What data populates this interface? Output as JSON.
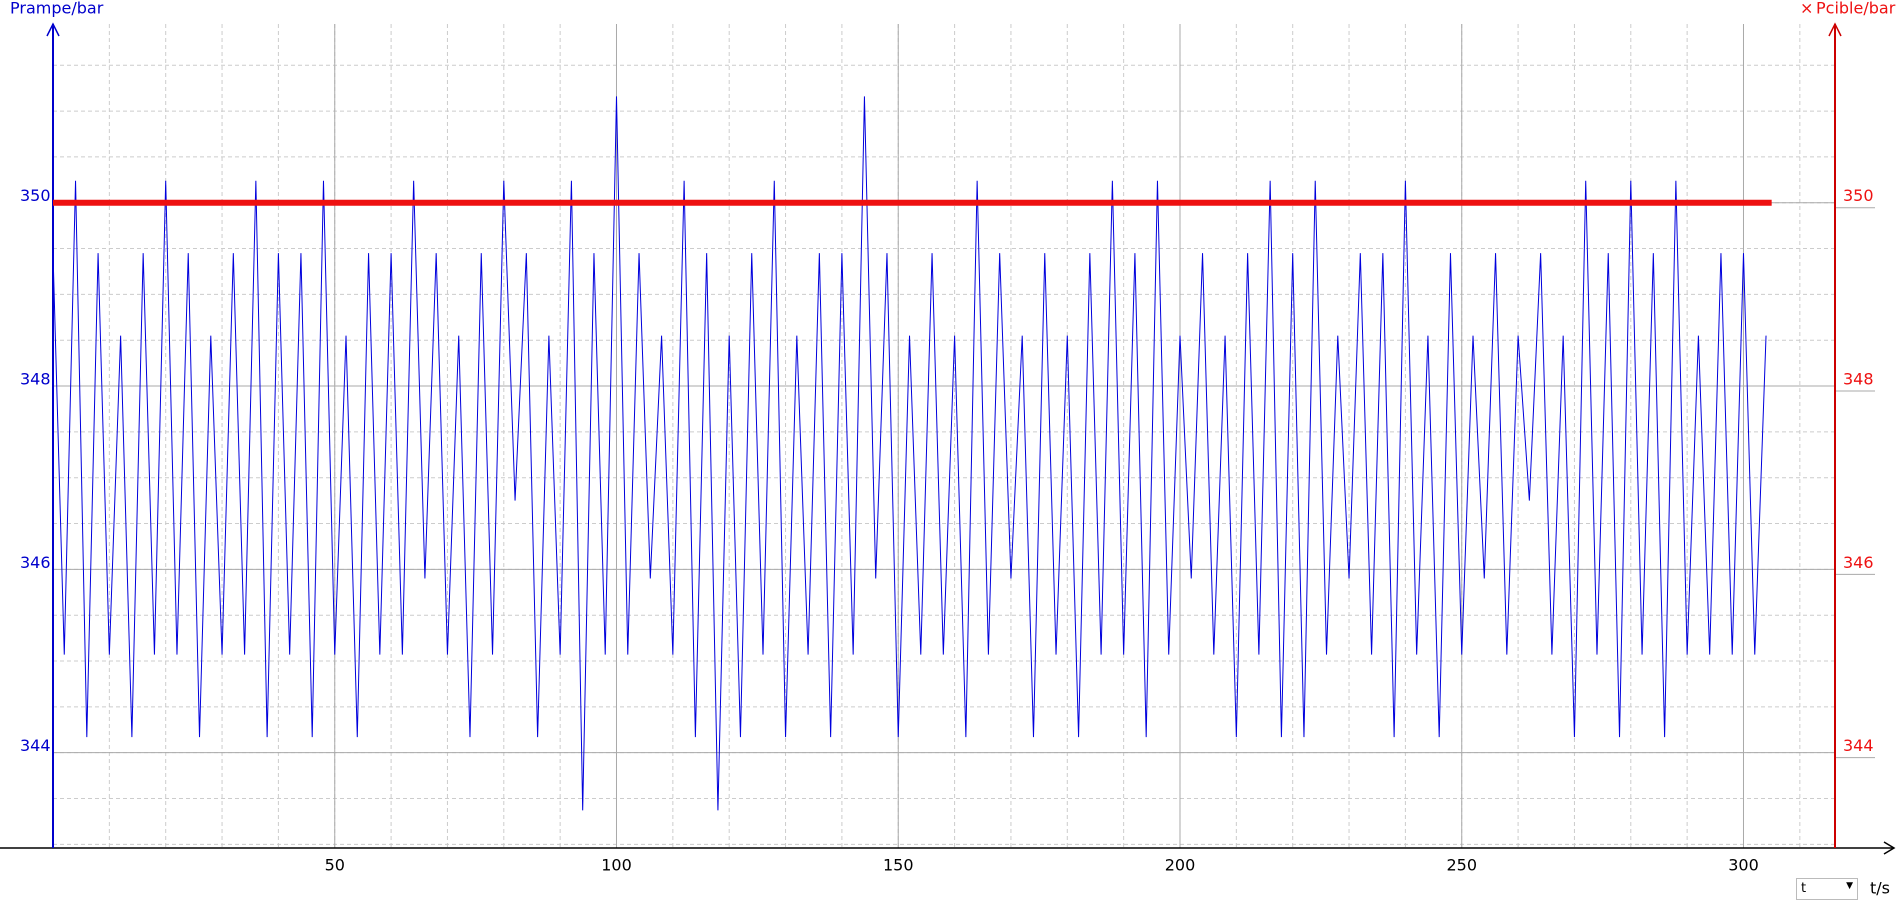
{
  "chart_data": {
    "type": "line",
    "y_label": "Prampe/bar",
    "y2_label": "Pcible/bar",
    "x_label": "t/s",
    "x_selector": "t",
    "close_icon": "×",
    "xlim": [
      0,
      326
    ],
    "xticks": [
      50,
      100,
      150,
      200,
      250,
      300
    ],
    "ylim": [
      342.96,
      351.95
    ],
    "yticks": [
      344,
      346,
      348,
      350
    ],
    "y2lim": [
      342.96,
      351.95
    ],
    "y2ticks": [
      344,
      346,
      348,
      350
    ],
    "grid": true,
    "series": [
      {
        "name": "Prampe/bar",
        "color": "#0000dd",
        "x": [
          0,
          2,
          4,
          6,
          8,
          10,
          12,
          14,
          16,
          18,
          20,
          22,
          24,
          26,
          28,
          30,
          32,
          34,
          36,
          38,
          40,
          42,
          44,
          46,
          48,
          50,
          52,
          54,
          56,
          58,
          60,
          62,
          64,
          66,
          68,
          70,
          72,
          74,
          76,
          78,
          80,
          82,
          84,
          86,
          88,
          90,
          92,
          94,
          96,
          98,
          100,
          102,
          104,
          106,
          108,
          110,
          112,
          114,
          116,
          118,
          120,
          122,
          124,
          126,
          128,
          130,
          132,
          134,
          136,
          138,
          140,
          142,
          144,
          146,
          148,
          150,
          152,
          154,
          156,
          158,
          160,
          162,
          164,
          166,
          168,
          170,
          172,
          174,
          176,
          178,
          180,
          182,
          184,
          186,
          188,
          190,
          192,
          194,
          196,
          198,
          200,
          202,
          204,
          206,
          208,
          210,
          212,
          214,
          216,
          218,
          220,
          222,
          224,
          226,
          228,
          230,
          232,
          234,
          236,
          238,
          240,
          242,
          244,
          246,
          248,
          250,
          252,
          254,
          256,
          258,
          260,
          262,
          264,
          266,
          268,
          270,
          272,
          274,
          276,
          278,
          280,
          282,
          284,
          286,
          288,
          290,
          292,
          294,
          296,
          298,
          300,
          302,
          304
        ],
        "values": [
          349.45,
          345.07,
          350.24,
          344.17,
          349.45,
          345.07,
          348.55,
          344.17,
          349.45,
          345.07,
          350.24,
          345.07,
          349.45,
          344.17,
          348.55,
          345.07,
          349.45,
          345.07,
          350.24,
          344.17,
          349.45,
          345.07,
          349.45,
          344.17,
          350.24,
          345.07,
          348.55,
          344.17,
          349.45,
          345.07,
          349.45,
          345.07,
          350.24,
          345.9,
          349.45,
          345.07,
          348.55,
          344.17,
          349.45,
          345.07,
          350.24,
          346.75,
          349.45,
          344.17,
          348.55,
          345.07,
          350.24,
          343.37,
          349.45,
          345.07,
          351.16,
          345.07,
          349.45,
          345.9,
          348.55,
          345.07,
          350.24,
          344.17,
          349.45,
          343.37,
          348.55,
          344.17,
          349.45,
          345.07,
          350.24,
          344.17,
          348.55,
          345.07,
          349.45,
          344.17,
          349.45,
          345.07,
          351.16,
          345.9,
          349.45,
          344.17,
          348.55,
          345.07,
          349.45,
          345.07,
          348.55,
          344.17,
          350.24,
          345.07,
          349.45,
          345.9,
          348.55,
          344.17,
          349.45,
          345.07,
          348.55,
          344.17,
          349.45,
          345.07,
          350.24,
          345.07,
          349.45,
          344.17,
          350.24,
          345.07,
          348.55,
          345.9,
          349.45,
          345.07,
          348.55,
          344.17,
          349.45,
          345.07,
          350.24,
          344.17,
          349.45,
          344.17,
          350.24,
          345.07,
          348.55,
          345.9,
          349.45,
          345.07,
          349.45,
          344.17,
          350.24,
          345.07,
          348.55,
          344.17,
          349.45,
          345.07,
          348.55,
          345.9,
          349.45,
          345.07,
          348.55,
          346.75,
          349.45,
          345.07,
          348.55,
          344.17,
          350.24,
          345.07,
          349.45,
          344.17,
          350.24,
          345.07,
          349.45,
          344.17,
          350.24,
          345.07,
          348.55,
          345.07,
          349.45,
          345.07,
          349.45,
          345.07,
          348.55
        ]
      },
      {
        "name": "Pcible/bar",
        "color": "#ee1111",
        "axis": "y2",
        "x": [
          0,
          305
        ],
        "values": [
          350,
          350
        ]
      }
    ]
  }
}
